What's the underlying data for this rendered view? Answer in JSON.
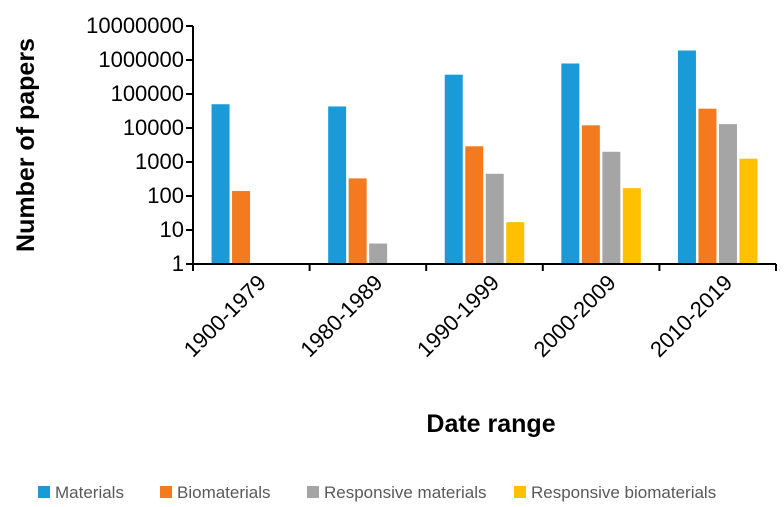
{
  "chart_data": {
    "type": "bar",
    "title": "",
    "xlabel": "Date range",
    "ylabel": "Number of papers",
    "y_scale": "log",
    "ylim": [
      1,
      10000000
    ],
    "y_ticks": [
      "1",
      "10",
      "100",
      "1000",
      "10000",
      "100000",
      "1000000",
      "10000000"
    ],
    "categories": [
      "1900-1979",
      "1980-1989",
      "1990-1999",
      "2000-2009",
      "2010-2019"
    ],
    "series": [
      {
        "name": "Materials",
        "color": "#1A9BD7",
        "values": [
          50000,
          43000,
          370000,
          790000,
          1900000
        ]
      },
      {
        "name": "Biomaterials",
        "color": "#F47A20",
        "values": [
          140,
          330,
          2900,
          12000,
          37000
        ]
      },
      {
        "name": "Responsive materials",
        "color": "#A5A5A5",
        "values": [
          null,
          4,
          450,
          2000,
          13000
        ]
      },
      {
        "name": "Responsive biomaterials",
        "color": "#FFC000",
        "values": [
          null,
          null,
          17,
          170,
          1250
        ]
      }
    ],
    "grid": false,
    "legend_position": "bottom"
  }
}
